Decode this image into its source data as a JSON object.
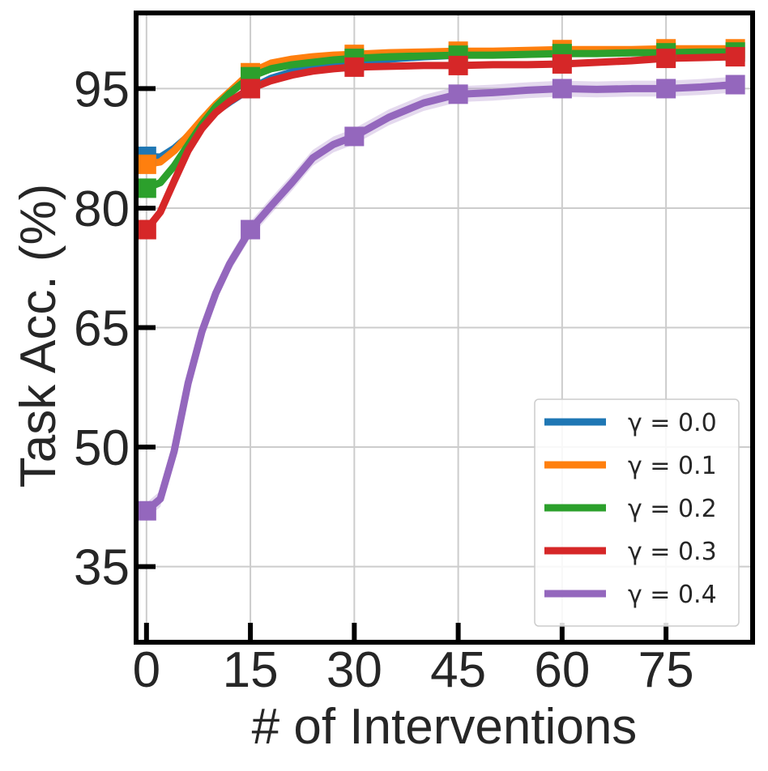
{
  "chart_data": {
    "type": "line",
    "title": "",
    "xlabel": "# of Interventions",
    "ylabel": "Task Acc. (%)",
    "xlim": [
      -1.5,
      87.5
    ],
    "ylim": [
      25.5,
      104.5
    ],
    "xticks": [
      0,
      15,
      30,
      45,
      60,
      75
    ],
    "yticks": [
      35,
      50,
      65,
      80,
      95
    ],
    "grid": true,
    "legend_position": "bottom-right",
    "marker_x": [
      0,
      15,
      30,
      45,
      60,
      75,
      85
    ],
    "series": [
      {
        "name": "γ = 0.0",
        "legend_label": "γ = 0.0",
        "color": "#1f77b4",
        "x": [
          0,
          2,
          4,
          6,
          8,
          10,
          12,
          15,
          18,
          21,
          24,
          27,
          30,
          35,
          40,
          45,
          50,
          55,
          60,
          65,
          70,
          75,
          80,
          85
        ],
        "y": [
          86.5,
          86.4,
          87.5,
          89.0,
          90.6,
          92.1,
          93.3,
          95.0,
          96.3,
          97.1,
          97.6,
          98.0,
          98.3,
          98.7,
          99.0,
          99.2,
          99.3,
          99.4,
          99.4,
          99.5,
          99.5,
          99.6,
          99.6,
          99.6
        ],
        "marker_y": [
          86.5,
          95.0,
          98.3,
          99.2,
          99.4,
          99.6,
          99.6
        ],
        "band": 0.3
      },
      {
        "name": "γ = 0.1",
        "legend_label": "γ = 0.1",
        "color": "#ff7f0e",
        "x": [
          0,
          2,
          4,
          6,
          8,
          10,
          12,
          15,
          18,
          21,
          24,
          27,
          30,
          35,
          40,
          45,
          50,
          55,
          60,
          65,
          70,
          75,
          80,
          85
        ],
        "y": [
          85.5,
          85.8,
          87.2,
          89.1,
          91.1,
          93.0,
          94.6,
          97.0,
          98.2,
          98.7,
          99.0,
          99.2,
          99.3,
          99.5,
          99.6,
          99.7,
          99.7,
          99.8,
          99.9,
          99.9,
          99.9,
          100.0,
          100.0,
          100.0
        ],
        "marker_y": [
          85.5,
          97.0,
          99.3,
          99.7,
          99.9,
          100.0,
          100.0
        ],
        "band": 0.35
      },
      {
        "name": "γ = 0.2",
        "legend_label": "γ = 0.2",
        "color": "#2ca02c",
        "x": [
          0,
          2,
          4,
          6,
          8,
          10,
          12,
          15,
          18,
          21,
          24,
          27,
          30,
          35,
          40,
          45,
          50,
          55,
          60,
          65,
          70,
          75,
          80,
          85
        ],
        "y": [
          82.5,
          83.2,
          85.3,
          87.9,
          90.5,
          92.7,
          94.4,
          96.5,
          97.5,
          98.0,
          98.3,
          98.6,
          98.8,
          99.0,
          99.1,
          99.2,
          99.2,
          99.3,
          99.4,
          99.4,
          99.5,
          99.5,
          99.6,
          99.6
        ],
        "marker_y": [
          82.5,
          96.5,
          98.8,
          99.2,
          99.4,
          99.5,
          99.6
        ],
        "band": 0.45
      },
      {
        "name": "γ = 0.3",
        "legend_label": "γ = 0.3",
        "color": "#d62728",
        "x": [
          0,
          2,
          4,
          6,
          8,
          10,
          12,
          15,
          18,
          21,
          24,
          27,
          30,
          35,
          40,
          45,
          50,
          55,
          60,
          65,
          70,
          75,
          80,
          85
        ],
        "y": [
          77.3,
          79.5,
          83.4,
          87.2,
          90.0,
          92.0,
          93.4,
          95.0,
          96.0,
          96.7,
          97.2,
          97.5,
          97.7,
          97.8,
          97.9,
          97.9,
          98.0,
          98.0,
          98.1,
          98.3,
          98.5,
          98.8,
          98.9,
          99.0
        ],
        "marker_y": [
          77.3,
          95.0,
          97.7,
          97.9,
          98.1,
          98.8,
          99.0
        ],
        "band": 0.35
      },
      {
        "name": "γ = 0.4",
        "legend_label": "γ = 0.4",
        "color": "#9467bd",
        "x": [
          0,
          2,
          4,
          6,
          8,
          10,
          12,
          15,
          18,
          21,
          24,
          27,
          30,
          35,
          40,
          45,
          50,
          55,
          60,
          65,
          70,
          75,
          80,
          85
        ],
        "y": [
          42.0,
          43.5,
          49.5,
          58.0,
          64.5,
          69.3,
          73.0,
          77.3,
          80.3,
          83.2,
          86.3,
          88.0,
          89.0,
          91.4,
          93.2,
          94.3,
          94.5,
          94.8,
          95.0,
          94.9,
          95.0,
          95.0,
          95.2,
          95.5
        ],
        "marker_y": [
          42.0,
          77.3,
          89.0,
          94.3,
          95.0,
          95.0,
          95.5
        ],
        "band": 1.0
      }
    ]
  }
}
